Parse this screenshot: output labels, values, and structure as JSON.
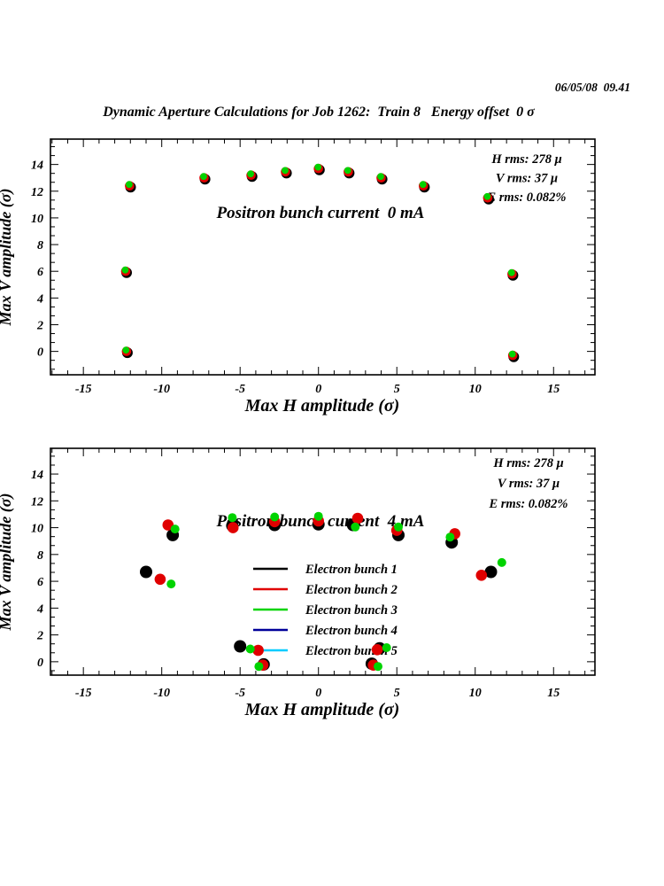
{
  "page": {
    "timestamp": "06/05/08  09.41",
    "title": "Dynamic Aperture Calculations for Job 1262:  Train 8   Energy offset  0 σ"
  },
  "colors": {
    "bunch1": "#000000",
    "bunch2": "#e00000",
    "bunch3": "#00d300",
    "bunch4": "#000099",
    "bunch5": "#00ccff"
  },
  "chart_data": [
    {
      "type": "scatter",
      "annotation": "Positron bunch current  0 mA",
      "stats": [
        "H rms: 278 μ",
        "V rms: 37 μ",
        "E rms: 0.082%"
      ],
      "xlabel": "Max H amplitude (σ)",
      "ylabel": "Max V amplitude (σ)",
      "xlim": [
        -17.1,
        17.64
      ],
      "ylim": [
        -1.75,
        15.9
      ],
      "x_major_ticks": [
        -15,
        -10,
        -5,
        0,
        5,
        10,
        15
      ],
      "y_major_ticks": [
        0,
        2,
        4,
        6,
        8,
        10,
        12,
        14
      ],
      "grid": false,
      "legend_visible": false,
      "series": [
        {
          "name": "Electron bunch 1",
          "color": "#000000",
          "points": [
            [
              -11.99,
              12.3
            ],
            [
              -7.24,
              12.9
            ],
            [
              -4.24,
              13.1
            ],
            [
              -2.04,
              13.35
            ],
            [
              0.06,
              13.6
            ],
            [
              1.96,
              13.35
            ],
            [
              4.06,
              12.9
            ],
            [
              6.76,
              12.3
            ],
            [
              10.86,
              11.4
            ],
            [
              -12.24,
              5.9
            ],
            [
              12.41,
              5.7
            ],
            [
              -12.19,
              -0.1
            ],
            [
              12.46,
              -0.4
            ]
          ]
        },
        {
          "name": "Electron bunch 2",
          "color": "#e00000",
          "points": [
            [
              -12.05,
              12.4
            ],
            [
              -7.3,
              13.0
            ],
            [
              -4.3,
              13.2
            ],
            [
              -2.1,
              13.45
            ],
            [
              0.0,
              13.7
            ],
            [
              1.9,
              13.45
            ],
            [
              4.0,
              13.0
            ],
            [
              6.7,
              12.4
            ],
            [
              10.8,
              11.5
            ],
            [
              -12.3,
              6.0
            ],
            [
              12.35,
              5.8
            ],
            [
              -12.25,
              0.0
            ],
            [
              12.4,
              -0.3
            ]
          ]
        },
        {
          "name": "Electron bunch 3",
          "color": "#00d300",
          "points": [
            [
              -12.08,
              12.5
            ],
            [
              -7.33,
              13.1
            ],
            [
              -4.33,
              13.3
            ],
            [
              -2.13,
              13.55
            ],
            [
              -0.03,
              13.8
            ],
            [
              1.87,
              13.55
            ],
            [
              3.97,
              13.1
            ],
            [
              6.67,
              12.5
            ],
            [
              10.77,
              11.6
            ],
            [
              -12.33,
              6.1
            ],
            [
              12.32,
              5.9
            ],
            [
              -12.28,
              0.1
            ],
            [
              12.37,
              -0.2
            ]
          ]
        },
        {
          "name": "Electron bunch 4",
          "color": "#000099",
          "points": []
        },
        {
          "name": "Electron bunch 5",
          "color": "#00ccff",
          "points": []
        }
      ]
    },
    {
      "type": "scatter",
      "annotation": "Positron bunch current  4 mA",
      "stats": [
        "H rms: 278 μ",
        "V rms: 37 μ",
        "E rms: 0.082%"
      ],
      "xlabel": "Max H amplitude (σ)",
      "ylabel": "Max V amplitude (σ)",
      "xlim": [
        -17.1,
        17.64
      ],
      "ylim": [
        -1.0,
        15.92
      ],
      "x_major_ticks": [
        -15,
        -10,
        -5,
        0,
        5,
        10,
        15
      ],
      "y_major_ticks": [
        0,
        2,
        4,
        6,
        8,
        10,
        12,
        14
      ],
      "grid": false,
      "legend_visible": true,
      "series": [
        {
          "name": "Electron bunch 1",
          "color": "#000000",
          "points": [
            [
              -11.0,
              6.7
            ],
            [
              -9.3,
              9.45
            ],
            [
              -5.5,
              10.15
            ],
            [
              -2.8,
              10.2
            ],
            [
              0.0,
              10.25
            ],
            [
              2.2,
              10.2
            ],
            [
              5.1,
              9.45
            ],
            [
              8.5,
              8.9
            ],
            [
              11.0,
              6.7
            ],
            [
              -5.0,
              1.15
            ],
            [
              -3.5,
              -0.2
            ],
            [
              3.9,
              1.0
            ],
            [
              3.4,
              -0.15
            ]
          ]
        },
        {
          "name": "Electron bunch 2",
          "color": "#e00000",
          "points": [
            [
              -10.1,
              6.15
            ],
            [
              -9.6,
              10.2
            ],
            [
              -5.45,
              10.0
            ],
            [
              -2.8,
              10.45
            ],
            [
              0.0,
              10.5
            ],
            [
              2.5,
              10.7
            ],
            [
              5.0,
              9.8
            ],
            [
              8.7,
              9.55
            ],
            [
              10.4,
              6.45
            ],
            [
              -3.85,
              0.85
            ],
            [
              -3.55,
              -0.25
            ],
            [
              3.75,
              0.9
            ],
            [
              3.5,
              -0.25
            ]
          ]
        },
        {
          "name": "Electron bunch 3",
          "color": "#00d300",
          "points": [
            [
              -9.4,
              5.8
            ],
            [
              -9.15,
              9.9
            ],
            [
              -5.5,
              10.75
            ],
            [
              -2.8,
              10.8
            ],
            [
              0.0,
              10.85
            ],
            [
              2.35,
              10.05
            ],
            [
              5.1,
              10.05
            ],
            [
              8.4,
              9.3
            ],
            [
              11.7,
              7.4
            ],
            [
              -4.35,
              0.95
            ],
            [
              -3.8,
              -0.35
            ],
            [
              4.35,
              1.05
            ],
            [
              3.8,
              -0.35
            ]
          ]
        },
        {
          "name": "Electron bunch 4",
          "color": "#000099",
          "points": []
        },
        {
          "name": "Electron bunch 5",
          "color": "#00ccff",
          "points": []
        }
      ]
    }
  ]
}
